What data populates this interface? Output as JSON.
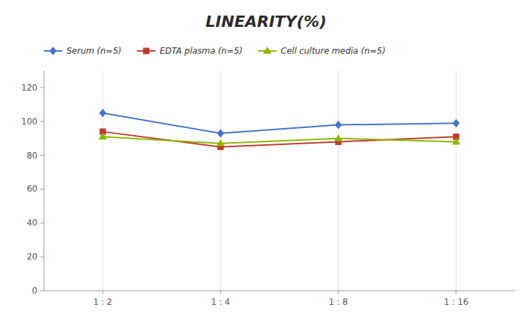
{
  "chart_data": {
    "type": "line",
    "title": "LINEARITY(%)",
    "categories": [
      "1 : 2",
      "1 : 4",
      "1 : 8",
      "1 : 16"
    ],
    "series": [
      {
        "name": "Serum (n=5)",
        "color": "#4472C4",
        "marker": "diamond",
        "values": [
          105,
          93,
          98,
          99
        ]
      },
      {
        "name": "EDTA plasma (n=5)",
        "color": "#C0392B",
        "marker": "square",
        "values": [
          94,
          85,
          88,
          91
        ]
      },
      {
        "name": "Cell culture media (n=5)",
        "color": "#8DB600",
        "marker": "triangle",
        "values": [
          91,
          87,
          90,
          88
        ]
      }
    ],
    "ylim": [
      0,
      130
    ],
    "yticks": [
      0,
      20,
      40,
      60,
      80,
      100,
      120
    ],
    "grid": "x",
    "legend": "top"
  }
}
